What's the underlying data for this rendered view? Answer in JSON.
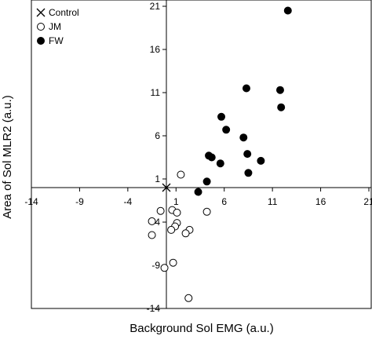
{
  "chart_data": {
    "type": "scatter",
    "x_label": "Background Sol EMG (a.u.)",
    "y_label": "Area of Sol MLR2 (a.u.)",
    "xlim": [
      -14,
      21
    ],
    "ylim": [
      -14,
      21
    ],
    "xticks": [
      -14,
      -9,
      -4,
      1,
      6,
      11,
      16,
      21
    ],
    "yticks": [
      -14,
      -9,
      -4,
      1,
      6,
      11,
      16,
      21
    ],
    "legend": "top-left",
    "series": [
      {
        "name": "Control",
        "marker": "x",
        "color": "#000000",
        "x": [
          0
        ],
        "values": [
          0
        ]
      },
      {
        "name": "JM",
        "marker": "open-circle",
        "color": "#000000",
        "x": [
          1.5,
          -0.6,
          0.6,
          1.1,
          1.1,
          0.9,
          4.2,
          -1.5,
          0.5,
          -1.5,
          2.4,
          2.0,
          0.7,
          -0.2,
          2.3
        ],
        "values": [
          1.5,
          -2.7,
          -2.6,
          -2.9,
          -4.1,
          -4.5,
          -2.8,
          -3.9,
          -4.9,
          -5.5,
          -4.9,
          -5.3,
          -8.7,
          -9.3,
          -12.8
        ]
      },
      {
        "name": "FW",
        "marker": "filled-circle",
        "color": "#000000",
        "x": [
          12.6,
          8.3,
          11.8,
          11.9,
          5.7,
          6.2,
          8.0,
          4.4,
          4.7,
          5.6,
          8.4,
          9.8,
          8.5,
          4.2,
          3.3
        ],
        "values": [
          20.5,
          11.5,
          11.3,
          9.3,
          8.2,
          6.7,
          5.8,
          3.7,
          3.5,
          2.8,
          3.9,
          3.1,
          1.7,
          0.7,
          -0.5
        ]
      }
    ]
  }
}
